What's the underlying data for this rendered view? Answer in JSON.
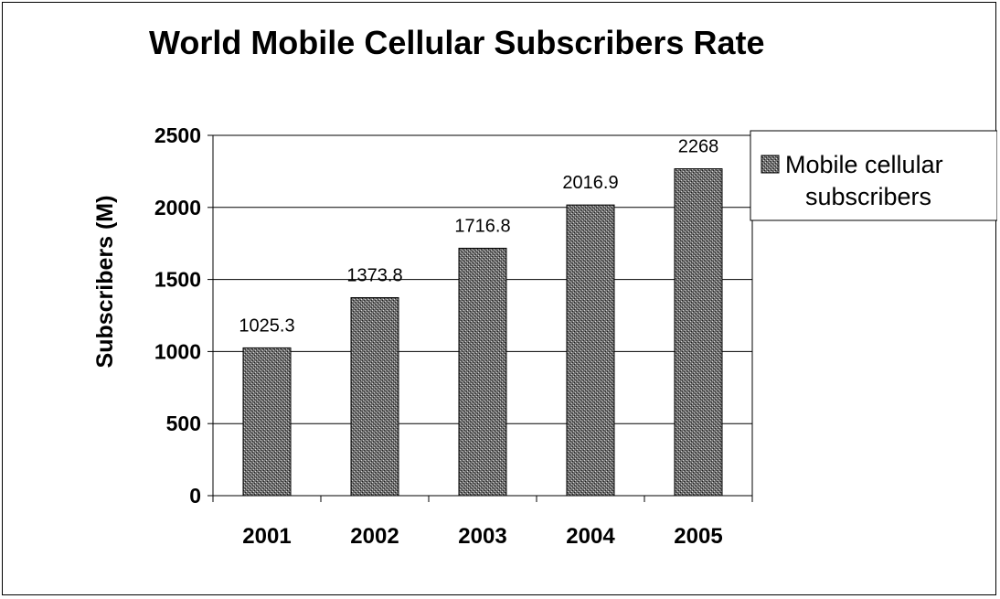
{
  "chart_data": {
    "type": "bar",
    "title": "World Mobile Cellular Subscribers Rate",
    "xlabel": "",
    "ylabel": "Subscribers (M)",
    "categories": [
      "2001",
      "2002",
      "2003",
      "2004",
      "2005"
    ],
    "series": [
      {
        "name": "Mobile cellular subscribers",
        "values": [
          1025.3,
          1373.8,
          1716.8,
          2016.9,
          2268
        ]
      }
    ],
    "data_labels": [
      "1025.3",
      "1373.8",
      "1716.8",
      "2016.9",
      "2268"
    ],
    "ylim": [
      0,
      2500
    ],
    "yticks": [
      0,
      500,
      1000,
      1500,
      2000,
      2500
    ],
    "ytick_labels": [
      "0",
      "500",
      "1000",
      "1500",
      "2000",
      "2500"
    ],
    "grid": true,
    "legend_position": "right",
    "bar_pattern": "stippled gray"
  }
}
